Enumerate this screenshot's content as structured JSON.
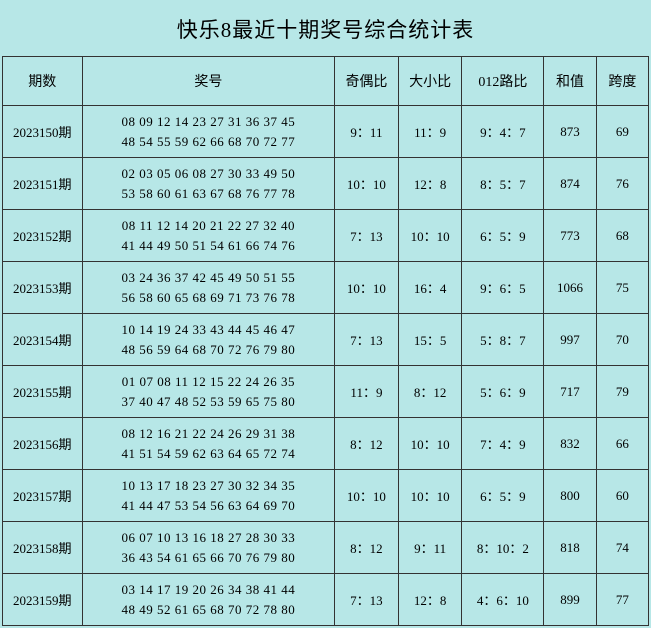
{
  "title": "快乐8最近十期奖号综合统计表",
  "background_color": "#b7e7e7",
  "border_color": "#333333",
  "text_color": "#000000",
  "title_fontsize": 21,
  "cell_fontsize": 13,
  "header_fontsize": 14,
  "columns": {
    "period": "期数",
    "numbers": "奖号",
    "odd_even": "奇偶比",
    "big_small": "大小比",
    "route012": "012路比",
    "sum": "和值",
    "span": "跨度"
  },
  "column_widths": {
    "period": 70,
    "numbers": 222,
    "ratio1": 56,
    "ratio2": 56,
    "ratio3": 72,
    "sum": 46,
    "span": 46
  },
  "rows": [
    {
      "period": "2023150期",
      "line1": "08 09 12 14 23 27 31 36 37 45",
      "line2": "48 54 55 59 62 66 68 70 72 77",
      "odd_even": "9：11",
      "big_small": "11：9",
      "route012": "9：4：7",
      "sum": "873",
      "span": "69"
    },
    {
      "period": "2023151期",
      "line1": "02 03 05 06 08 27 30 33 49 50",
      "line2": "53 58 60 61 63 67 68 76 77 78",
      "odd_even": "10：10",
      "big_small": "12：8",
      "route012": "8：5：7",
      "sum": "874",
      "span": "76"
    },
    {
      "period": "2023152期",
      "line1": "08 11 12 14 20 21 22 27 32 40",
      "line2": "41 44 49 50 51 54 61 66 74 76",
      "odd_even": "7：13",
      "big_small": "10：10",
      "route012": "6：5：9",
      "sum": "773",
      "span": "68"
    },
    {
      "period": "2023153期",
      "line1": "03 24 36 37 42 45 49 50 51 55",
      "line2": "56 58 60 65 68 69 71 73 76 78",
      "odd_even": "10：10",
      "big_small": "16：4",
      "route012": "9：6：5",
      "sum": "1066",
      "span": "75"
    },
    {
      "period": "2023154期",
      "line1": "10 14 19 24 33 43 44 45 46 47",
      "line2": "48 56 59 64 68 70 72 76 79 80",
      "odd_even": "7：13",
      "big_small": "15：5",
      "route012": "5：8：7",
      "sum": "997",
      "span": "70"
    },
    {
      "period": "2023155期",
      "line1": "01 07 08 11 12 15 22 24 26 35",
      "line2": "37 40 47 48 52 53 59 65 75 80",
      "odd_even": "11：9",
      "big_small": "8：12",
      "route012": "5：6：9",
      "sum": "717",
      "span": "79"
    },
    {
      "period": "2023156期",
      "line1": "08 12 16 21 22 24 26 29 31 38",
      "line2": "41 51 54 59 62 63 64 65 72 74",
      "odd_even": "8：12",
      "big_small": "10：10",
      "route012": "7：4：9",
      "sum": "832",
      "span": "66"
    },
    {
      "period": "2023157期",
      "line1": "10 13 17 18 23 27 30 32 34 35",
      "line2": "41 44 47 53 54 56 63 64 69 70",
      "odd_even": "10：10",
      "big_small": "10：10",
      "route012": "6：5：9",
      "sum": "800",
      "span": "60"
    },
    {
      "period": "2023158期",
      "line1": "06 07 10 13 16 18 27 28 30 33",
      "line2": "36 43 54 61 65 66 70 76 79 80",
      "odd_even": "8：12",
      "big_small": "9：11",
      "route012": "8：10：2",
      "sum": "818",
      "span": "74"
    },
    {
      "period": "2023159期",
      "line1": "03 14 17 19 20 26 34 38 41 44",
      "line2": "48 49 52 61 65 68 70 72 78 80",
      "odd_even": "7：13",
      "big_small": "12：8",
      "route012": "4：6：10",
      "sum": "899",
      "span": "77"
    }
  ]
}
